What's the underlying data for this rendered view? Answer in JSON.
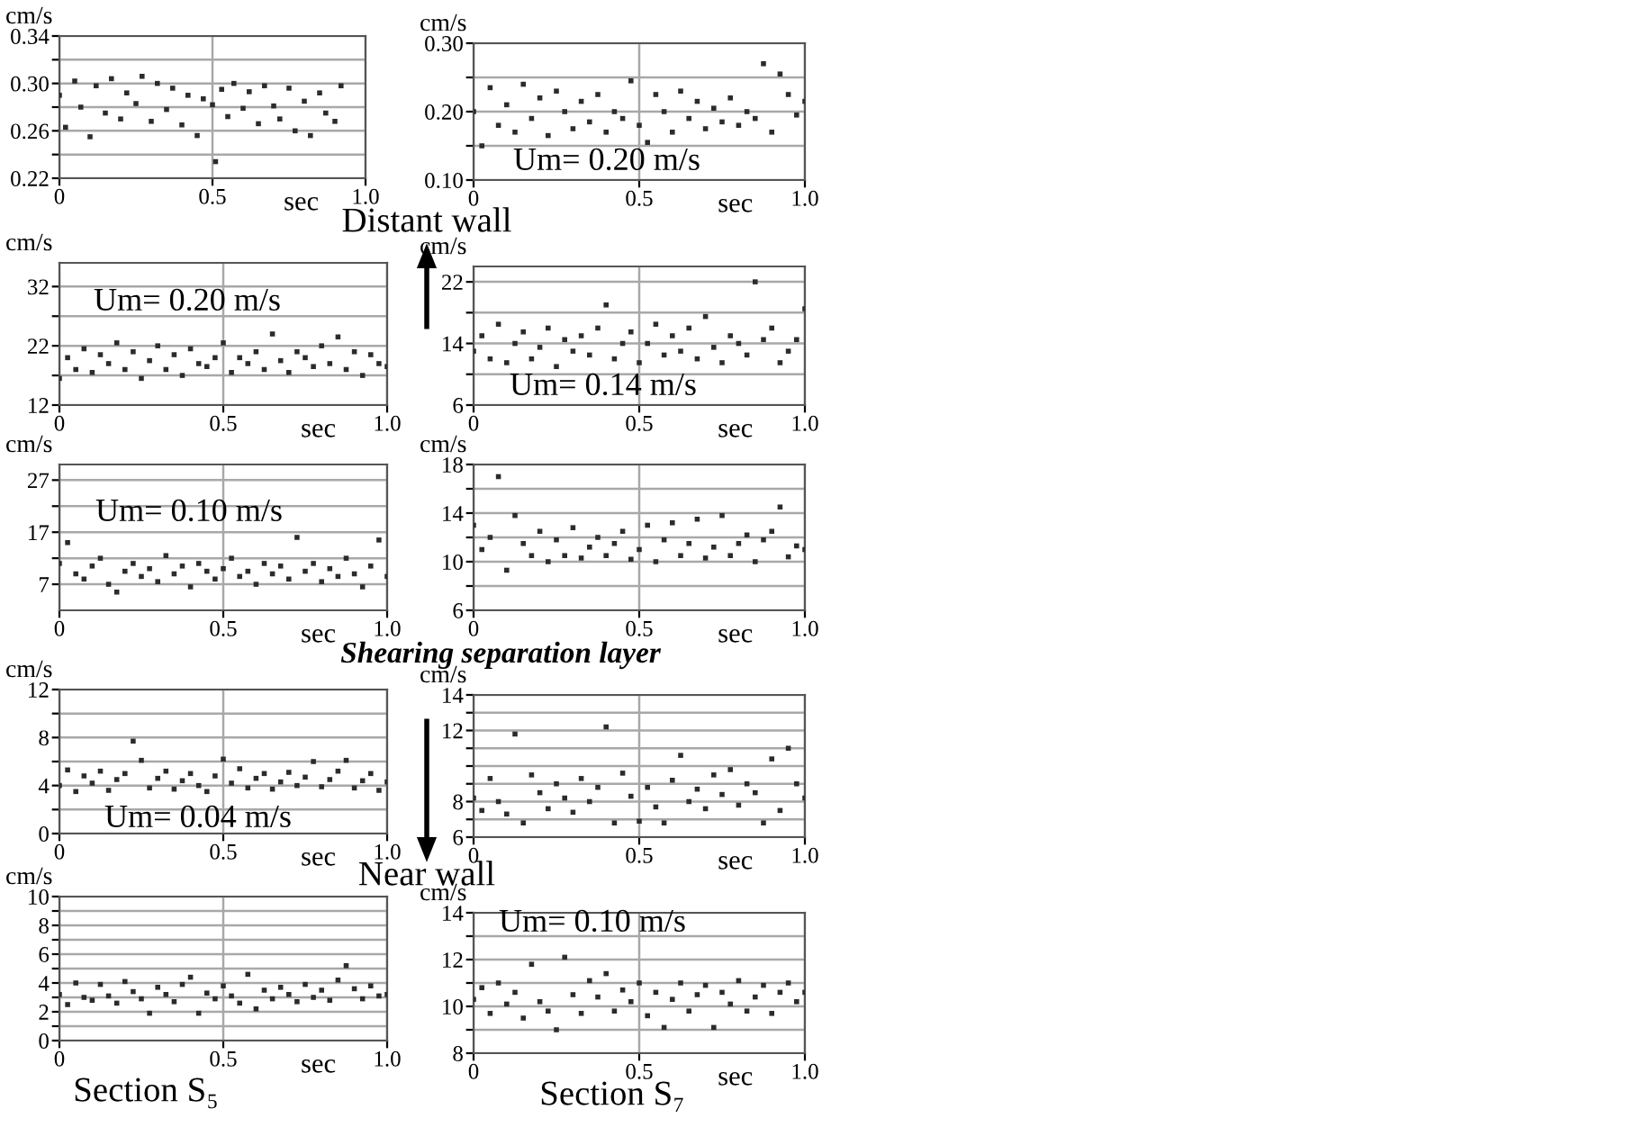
{
  "chart_data": [
    {
      "type": "scatter",
      "ylabel": "cm/s",
      "xlabel": "sec",
      "xlim": [
        0,
        1
      ],
      "ylim": [
        0.22,
        0.34
      ],
      "xticks": [
        {
          "value": 0,
          "label": "0"
        },
        {
          "value": 0.5,
          "label": "0.5"
        },
        {
          "value": 1,
          "label": "1.0"
        }
      ],
      "yticks": [
        {
          "value": 0.22,
          "label": "0.22"
        },
        {
          "value": 0.24,
          "label": null
        },
        {
          "value": 0.26,
          "label": "0.26"
        },
        {
          "value": 0.28,
          "label": null
        },
        {
          "value": 0.3,
          "label": "0.30"
        },
        {
          "value": 0.32,
          "label": null
        },
        {
          "value": 0.34,
          "label": "0.34"
        }
      ],
      "grid": true,
      "marker": "square",
      "series": [
        {
          "color": "#2b2b2b",
          "x": [
            0,
            0.02,
            0.05,
            0.07,
            0.1,
            0.12,
            0.15,
            0.17,
            0.2,
            0.22,
            0.25,
            0.27,
            0.3,
            0.32,
            0.35,
            0.37,
            0.4,
            0.42,
            0.45,
            0.47,
            0.5,
            0.51,
            0.53,
            0.55,
            0.57,
            0.6,
            0.62,
            0.65,
            0.67,
            0.7,
            0.72,
            0.75,
            0.77,
            0.8,
            0.82,
            0.85,
            0.87,
            0.9,
            0.92
          ],
          "values": [
            0.29,
            0.263,
            0.302,
            0.28,
            0.255,
            0.298,
            0.275,
            0.304,
            0.27,
            0.292,
            0.283,
            0.306,
            0.268,
            0.3,
            0.278,
            0.296,
            0.265,
            0.29,
            0.256,
            0.287,
            0.282,
            0.234,
            0.295,
            0.272,
            0.3,
            0.279,
            0.293,
            0.266,
            0.298,
            0.281,
            0.27,
            0.296,
            0.26,
            0.285,
            0.256,
            0.292,
            0.275,
            0.268,
            0.298
          ]
        }
      ]
    },
    {
      "type": "scatter",
      "ylabel": "cm/s",
      "xlabel": "sec",
      "xlim": [
        0,
        1
      ],
      "ylim": [
        0.1,
        0.3
      ],
      "xticks": [
        {
          "value": 0,
          "label": "0"
        },
        {
          "value": 0.5,
          "label": "0.5"
        },
        {
          "value": 1,
          "label": "1.0"
        }
      ],
      "yticks": [
        {
          "value": 0.1,
          "label": "0.10"
        },
        {
          "value": 0.15,
          "label": null
        },
        {
          "value": 0.2,
          "label": "0.20"
        },
        {
          "value": 0.25,
          "label": null
        },
        {
          "value": 0.3,
          "label": "0.30"
        }
      ],
      "grid": true,
      "marker": "square",
      "annotations": [
        "Um= 0.20 m/s",
        "Distant wall"
      ],
      "series": [
        {
          "color": "#2b2b2b",
          "x": [
            0,
            0.025,
            0.05,
            0.075,
            0.1,
            0.125,
            0.15,
            0.175,
            0.2,
            0.225,
            0.25,
            0.275,
            0.3,
            0.325,
            0.35,
            0.375,
            0.4,
            0.425,
            0.45,
            0.475,
            0.5,
            0.525,
            0.55,
            0.575,
            0.6,
            0.625,
            0.65,
            0.675,
            0.7,
            0.725,
            0.75,
            0.775,
            0.8,
            0.825,
            0.85,
            0.875,
            0.9,
            0.925,
            0.95,
            0.975,
            1.0
          ],
          "values": [
            0.2,
            0.15,
            0.235,
            0.18,
            0.21,
            0.17,
            0.24,
            0.19,
            0.22,
            0.165,
            0.23,
            0.2,
            0.175,
            0.215,
            0.185,
            0.225,
            0.17,
            0.2,
            0.19,
            0.245,
            0.18,
            0.155,
            0.225,
            0.2,
            0.17,
            0.23,
            0.19,
            0.215,
            0.175,
            0.205,
            0.185,
            0.22,
            0.18,
            0.2,
            0.19,
            0.27,
            0.17,
            0.255,
            0.225,
            0.195,
            0.215
          ]
        }
      ]
    },
    {
      "type": "scatter",
      "ylabel": "cm/s",
      "xlabel": "sec",
      "xlim": [
        0,
        1
      ],
      "ylim": [
        12,
        36
      ],
      "xticks": [
        {
          "value": 0,
          "label": "0"
        },
        {
          "value": 0.5,
          "label": "0.5"
        },
        {
          "value": 1,
          "label": "1.0"
        }
      ],
      "yticks": [
        12,
        {
          "value": 17,
          "label": null
        },
        22,
        {
          "value": 27,
          "label": null
        },
        32
      ],
      "grid": true,
      "marker": "square",
      "annotations": [
        "Um= 0.20 m/s"
      ],
      "series": [
        {
          "color": "#2b2b2b",
          "x": [
            0,
            0.025,
            0.05,
            0.075,
            0.1,
            0.125,
            0.15,
            0.175,
            0.2,
            0.225,
            0.25,
            0.275,
            0.3,
            0.325,
            0.35,
            0.375,
            0.4,
            0.425,
            0.45,
            0.475,
            0.5,
            0.525,
            0.55,
            0.575,
            0.6,
            0.625,
            0.65,
            0.675,
            0.7,
            0.725,
            0.75,
            0.775,
            0.8,
            0.825,
            0.85,
            0.875,
            0.9,
            0.925,
            0.95,
            0.975,
            1.0
          ],
          "values": [
            16.5,
            20,
            18,
            21.5,
            17.5,
            20.5,
            19,
            22.5,
            18,
            21,
            16.5,
            19.5,
            22,
            18,
            20.5,
            17,
            21.5,
            19,
            18.5,
            20,
            22.5,
            17.5,
            20,
            19,
            21,
            18,
            24,
            19.5,
            17.5,
            21,
            20,
            18.5,
            22,
            19,
            23.5,
            18,
            21,
            17,
            20.5,
            19,
            18.5
          ]
        }
      ]
    },
    {
      "type": "scatter",
      "ylabel": "cm/s",
      "xlabel": "sec",
      "xlim": [
        0,
        1
      ],
      "ylim": [
        6,
        24
      ],
      "xticks": [
        {
          "value": 0,
          "label": "0"
        },
        {
          "value": 0.5,
          "label": "0.5"
        },
        {
          "value": 1,
          "label": "1.0"
        }
      ],
      "yticks": [
        6,
        {
          "value": 10,
          "label": null
        },
        14,
        {
          "value": 18,
          "label": null
        },
        22
      ],
      "grid": true,
      "marker": "square",
      "annotations": [
        "Um= 0.14 m/s"
      ],
      "series": [
        {
          "color": "#2b2b2b",
          "x": [
            0,
            0.025,
            0.05,
            0.075,
            0.1,
            0.125,
            0.15,
            0.175,
            0.2,
            0.225,
            0.25,
            0.275,
            0.3,
            0.325,
            0.35,
            0.375,
            0.4,
            0.425,
            0.45,
            0.475,
            0.5,
            0.525,
            0.55,
            0.575,
            0.6,
            0.625,
            0.65,
            0.675,
            0.7,
            0.725,
            0.75,
            0.775,
            0.8,
            0.825,
            0.85,
            0.875,
            0.9,
            0.925,
            0.95,
            0.975,
            1.0
          ],
          "values": [
            13,
            15,
            12,
            16.5,
            11.5,
            14,
            15.5,
            12,
            13.5,
            16,
            11,
            14.5,
            13,
            15,
            12.5,
            16,
            19,
            12,
            14,
            15.5,
            11.5,
            14,
            16.5,
            12.5,
            15,
            13,
            16,
            12,
            17.5,
            13.5,
            11.5,
            15,
            14,
            12.5,
            22,
            14.5,
            16,
            11.5,
            13,
            14.5,
            18.5
          ]
        }
      ]
    },
    {
      "type": "scatter",
      "ylabel": "cm/s",
      "xlabel": "sec",
      "xlim": [
        0,
        1
      ],
      "ylim": [
        2,
        30
      ],
      "xticks": [
        {
          "value": 0,
          "label": "0"
        },
        {
          "value": 0.5,
          "label": "0.5"
        },
        {
          "value": 1,
          "label": "1.0"
        }
      ],
      "yticks": [
        7,
        {
          "value": 12,
          "label": null
        },
        17,
        {
          "value": 22,
          "label": null
        },
        27
      ],
      "grid": true,
      "marker": "square",
      "annotations": [
        "Um= 0.10 m/s"
      ],
      "series": [
        {
          "color": "#2b2b2b",
          "x": [
            0,
            0.025,
            0.05,
            0.075,
            0.1,
            0.125,
            0.15,
            0.175,
            0.2,
            0.225,
            0.25,
            0.275,
            0.3,
            0.325,
            0.35,
            0.375,
            0.4,
            0.425,
            0.45,
            0.475,
            0.5,
            0.525,
            0.55,
            0.575,
            0.6,
            0.625,
            0.65,
            0.675,
            0.7,
            0.725,
            0.75,
            0.775,
            0.8,
            0.825,
            0.85,
            0.875,
            0.9,
            0.925,
            0.95,
            0.975,
            1.0
          ],
          "values": [
            11,
            15,
            9,
            8,
            10.5,
            12,
            7,
            5.5,
            9.5,
            11,
            8.5,
            10,
            7.5,
            12.5,
            9,
            10.5,
            6.5,
            11,
            9.5,
            8,
            10,
            12,
            8.5,
            9.5,
            7,
            11,
            9,
            10.5,
            8,
            16,
            9.5,
            11,
            7.5,
            10,
            8.5,
            12,
            9,
            6.5,
            10.5,
            15.5,
            8.5
          ]
        }
      ]
    },
    {
      "type": "scatter",
      "ylabel": "cm/s",
      "xlabel": "sec",
      "xlim": [
        0,
        1
      ],
      "ylim": [
        6,
        18
      ],
      "xticks": [
        {
          "value": 0,
          "label": "0"
        },
        {
          "value": 0.5,
          "label": "0.5"
        },
        {
          "value": 1,
          "label": "1.0"
        }
      ],
      "yticks": [
        6,
        {
          "value": 8,
          "label": null
        },
        10,
        {
          "value": 12,
          "label": null
        },
        14,
        {
          "value": 16,
          "label": null
        },
        18
      ],
      "grid": true,
      "marker": "square",
      "annotations": [
        "Shearing separation layer"
      ],
      "series": [
        {
          "color": "#2b2b2b",
          "x": [
            0,
            0.025,
            0.05,
            0.075,
            0.1,
            0.125,
            0.15,
            0.175,
            0.2,
            0.225,
            0.25,
            0.275,
            0.3,
            0.325,
            0.35,
            0.375,
            0.4,
            0.425,
            0.45,
            0.475,
            0.5,
            0.525,
            0.55,
            0.575,
            0.6,
            0.625,
            0.65,
            0.675,
            0.7,
            0.725,
            0.75,
            0.775,
            0.8,
            0.825,
            0.85,
            0.875,
            0.9,
            0.925,
            0.95,
            0.975,
            1.0
          ],
          "values": [
            13,
            11,
            12,
            17,
            9.3,
            13.8,
            11.5,
            10.5,
            12.5,
            10,
            11.8,
            10.5,
            12.8,
            10.3,
            11.2,
            12,
            10.5,
            11.5,
            12.5,
            10.2,
            11,
            13,
            10,
            11.8,
            13.2,
            10.5,
            11.5,
            13.5,
            10.3,
            11.2,
            13.8,
            10.5,
            11.5,
            12.2,
            10,
            11.8,
            12.5,
            14.5,
            10.4,
            11.3,
            11
          ]
        }
      ]
    },
    {
      "type": "scatter",
      "ylabel": "cm/s",
      "xlabel": "sec",
      "xlim": [
        0,
        1
      ],
      "ylim": [
        0,
        12
      ],
      "xticks": [
        {
          "value": 0,
          "label": "0"
        },
        {
          "value": 0.5,
          "label": "0.5"
        },
        {
          "value": 1,
          "label": "1.0"
        }
      ],
      "yticks": [
        0,
        {
          "value": 2,
          "label": null
        },
        4,
        {
          "value": 6,
          "label": null
        },
        8,
        {
          "value": 10,
          "label": null
        },
        12
      ],
      "grid": true,
      "marker": "square",
      "annotations": [
        "Um= 0.04 m/s"
      ],
      "series": [
        {
          "color": "#2b2b2b",
          "x": [
            0,
            0.025,
            0.05,
            0.075,
            0.1,
            0.125,
            0.15,
            0.175,
            0.2,
            0.225,
            0.25,
            0.275,
            0.3,
            0.325,
            0.35,
            0.375,
            0.4,
            0.425,
            0.45,
            0.475,
            0.5,
            0.525,
            0.55,
            0.575,
            0.6,
            0.625,
            0.65,
            0.675,
            0.7,
            0.725,
            0.75,
            0.775,
            0.8,
            0.825,
            0.85,
            0.875,
            0.9,
            0.925,
            0.95,
            0.975,
            1.0
          ],
          "values": [
            4,
            5.3,
            3.5,
            4.8,
            4.2,
            5.2,
            3.6,
            4.5,
            5,
            7.7,
            6.1,
            3.8,
            4.6,
            5.2,
            3.7,
            4.4,
            5,
            4,
            3.5,
            4.8,
            6.2,
            4.2,
            5.4,
            3.8,
            4.6,
            5,
            3.7,
            4.3,
            5.1,
            4,
            4.7,
            6,
            3.9,
            4.5,
            5.2,
            6.1,
            3.8,
            4.4,
            5,
            3.6,
            4.3
          ]
        }
      ]
    },
    {
      "type": "scatter",
      "ylabel": "cm/s",
      "xlabel": "sec",
      "xlim": [
        0,
        1
      ],
      "ylim": [
        6,
        14
      ],
      "xticks": [
        {
          "value": 0,
          "label": "0"
        },
        {
          "value": 0.5,
          "label": "0.5"
        },
        {
          "value": 1,
          "label": "1.0"
        }
      ],
      "yticks": [
        6,
        {
          "value": 7,
          "label": null
        },
        8,
        {
          "value": 9,
          "label": null
        },
        {
          "value": 10,
          "label": null
        },
        {
          "value": 11,
          "label": null
        },
        12,
        {
          "value": 13,
          "label": null
        },
        14
      ],
      "grid": true,
      "marker": "square",
      "annotations": [
        "Near wall"
      ],
      "series": [
        {
          "color": "#2b2b2b",
          "x": [
            0,
            0.025,
            0.05,
            0.075,
            0.1,
            0.125,
            0.15,
            0.175,
            0.2,
            0.225,
            0.25,
            0.275,
            0.3,
            0.325,
            0.35,
            0.375,
            0.4,
            0.425,
            0.45,
            0.475,
            0.5,
            0.525,
            0.55,
            0.575,
            0.6,
            0.625,
            0.65,
            0.675,
            0.7,
            0.725,
            0.75,
            0.775,
            0.8,
            0.825,
            0.85,
            0.875,
            0.9,
            0.925,
            0.95,
            0.975,
            1.0
          ],
          "values": [
            8.2,
            7.5,
            9.3,
            8,
            7.3,
            11.8,
            6.8,
            9.5,
            8.5,
            7.6,
            9,
            8.2,
            7.4,
            9.3,
            8,
            8.8,
            12.2,
            6.8,
            9.6,
            8.3,
            6.9,
            8.8,
            7.7,
            6.8,
            9.2,
            10.6,
            8,
            8.7,
            7.6,
            9.5,
            8.4,
            9.8,
            7.8,
            9,
            8.5,
            6.8,
            10.4,
            7.5,
            11,
            9,
            8.2
          ]
        }
      ]
    },
    {
      "type": "scatter",
      "ylabel": "cm/s",
      "xlabel": "sec",
      "xlim": [
        0,
        1
      ],
      "ylim": [
        0,
        10
      ],
      "xticks": [
        {
          "value": 0,
          "label": "0"
        },
        {
          "value": 0.5,
          "label": "0.5"
        },
        {
          "value": 1,
          "label": "1.0"
        }
      ],
      "yticks": [
        0,
        {
          "value": 1,
          "label": null
        },
        2,
        {
          "value": 3,
          "label": null
        },
        4,
        {
          "value": 5,
          "label": null
        },
        6,
        {
          "value": 7,
          "label": null
        },
        8,
        {
          "value": 9,
          "label": null
        },
        10
      ],
      "grid": true,
      "marker": "square",
      "annotations": [
        "Section S₅"
      ],
      "series": [
        {
          "color": "#2b2b2b",
          "x": [
            0,
            0.025,
            0.05,
            0.075,
            0.1,
            0.125,
            0.15,
            0.175,
            0.2,
            0.225,
            0.25,
            0.275,
            0.3,
            0.325,
            0.35,
            0.375,
            0.4,
            0.425,
            0.45,
            0.475,
            0.5,
            0.525,
            0.55,
            0.575,
            0.6,
            0.625,
            0.65,
            0.675,
            0.7,
            0.725,
            0.75,
            0.775,
            0.8,
            0.825,
            0.85,
            0.875,
            0.9,
            0.925,
            0.95,
            0.975,
            1.0
          ],
          "values": [
            3.2,
            2.5,
            4,
            3,
            2.8,
            3.9,
            3.1,
            2.6,
            4.1,
            3.4,
            2.9,
            1.9,
            3.7,
            3.2,
            2.7,
            3.9,
            4.4,
            1.9,
            3.3,
            2.9,
            3.8,
            3.1,
            2.6,
            4.6,
            2.2,
            3.5,
            2.9,
            3.7,
            3.2,
            2.7,
            3.9,
            3,
            3.5,
            2.8,
            4.2,
            5.2,
            3.6,
            2.9,
            3.8,
            3.1,
            3.2
          ]
        }
      ]
    },
    {
      "type": "scatter",
      "ylabel": "cm/s",
      "xlabel": "sec",
      "xlim": [
        0,
        1
      ],
      "ylim": [
        8,
        14
      ],
      "xticks": [
        {
          "value": 0,
          "label": "0"
        },
        {
          "value": 0.5,
          "label": "0.5"
        },
        {
          "value": 1,
          "label": "1.0"
        }
      ],
      "yticks": [
        8,
        {
          "value": 9,
          "label": null
        },
        10,
        {
          "value": 11,
          "label": null
        },
        12,
        {
          "value": 13,
          "label": null
        },
        14
      ],
      "grid": true,
      "marker": "square",
      "annotations": [
        "Um= 0.10 m/s",
        "Section S₇"
      ],
      "series": [
        {
          "color": "#2b2b2b",
          "x": [
            0,
            0.025,
            0.05,
            0.075,
            0.1,
            0.125,
            0.15,
            0.175,
            0.2,
            0.225,
            0.25,
            0.275,
            0.3,
            0.325,
            0.35,
            0.375,
            0.4,
            0.425,
            0.45,
            0.475,
            0.5,
            0.525,
            0.55,
            0.575,
            0.6,
            0.625,
            0.65,
            0.675,
            0.7,
            0.725,
            0.75,
            0.775,
            0.8,
            0.825,
            0.85,
            0.875,
            0.9,
            0.925,
            0.95,
            0.975,
            1.0
          ],
          "values": [
            10.3,
            10.8,
            9.7,
            11,
            10.1,
            10.6,
            9.5,
            11.8,
            10.2,
            9.8,
            9,
            12.1,
            10.5,
            9.7,
            11.1,
            10.4,
            11.4,
            9.8,
            10.7,
            10.2,
            11,
            9.6,
            10.6,
            9.1,
            10.3,
            11,
            9.8,
            10.5,
            10.9,
            9.1,
            10.6,
            10.1,
            11.1,
            9.8,
            10.4,
            10.9,
            9.7,
            10.6,
            11,
            10.2,
            10.6
          ]
        }
      ]
    }
  ]
}
